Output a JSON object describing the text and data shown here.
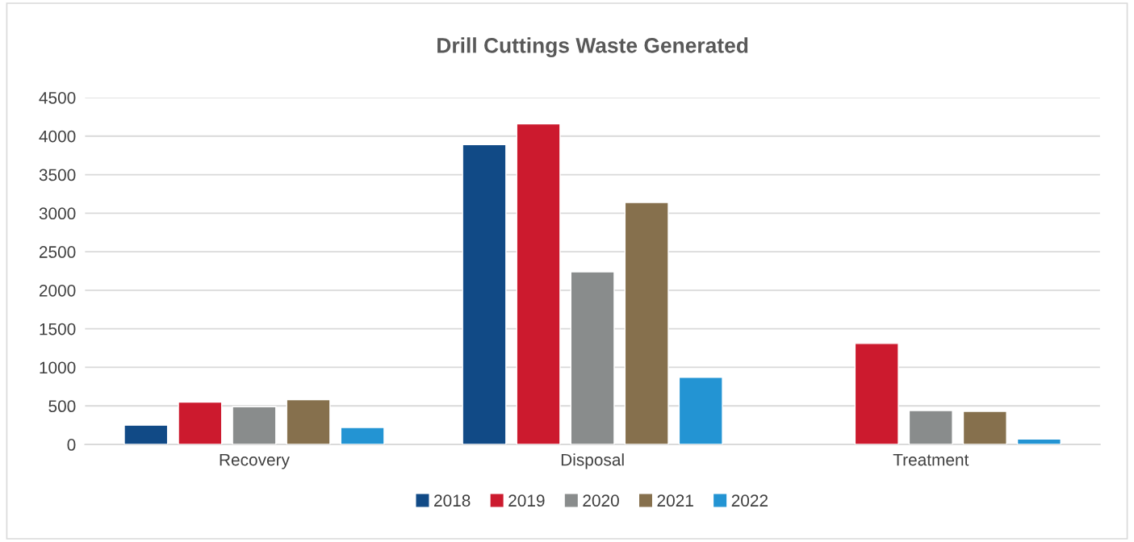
{
  "chart_data": {
    "type": "bar",
    "title": "Drill Cuttings Waste Generated",
    "categories": [
      "Recovery",
      "Disposal",
      "Treatment"
    ],
    "series": [
      {
        "name": "2018",
        "color": "#114a86",
        "values": [
          250,
          3890,
          null
        ]
      },
      {
        "name": "2019",
        "color": "#cc1a2e",
        "values": [
          550,
          4160,
          1310
        ]
      },
      {
        "name": "2020",
        "color": "#898c8c",
        "values": [
          490,
          2240,
          440
        ]
      },
      {
        "name": "2021",
        "color": "#86704d",
        "values": [
          580,
          3140,
          430
        ]
      },
      {
        "name": "2022",
        "color": "#2394d3",
        "values": [
          220,
          870,
          70
        ]
      }
    ],
    "ylim": [
      0,
      4500
    ],
    "yticks": [
      0,
      500,
      1000,
      1500,
      2000,
      2500,
      3000,
      3500,
      4000,
      4500
    ],
    "grid": "y",
    "legend": "bottom"
  }
}
